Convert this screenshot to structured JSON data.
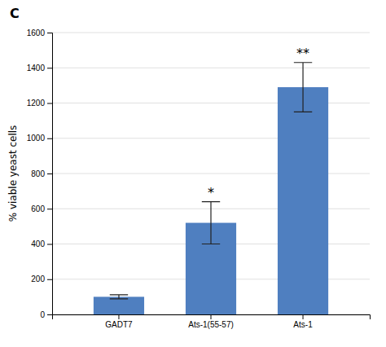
{
  "chart_data": {
    "type": "bar",
    "title": "C",
    "categories": [
      "GADT7",
      "Ats-1(55-57)",
      "Ats-1"
    ],
    "values": [
      100,
      520,
      1290
    ],
    "errors": [
      12,
      120,
      140
    ],
    "color": "#4F7FC0",
    "ylabel": "% viable yeast cells",
    "ylim": [
      0,
      1600
    ],
    "yticks": [
      0,
      200,
      400,
      600,
      800,
      1000,
      1200,
      1400,
      1600
    ],
    "grid": true,
    "annotations": [
      {
        "text": "*",
        "category": "Ats-1(55-57)"
      },
      {
        "text": "**",
        "category": "Ats-1"
      }
    ]
  }
}
